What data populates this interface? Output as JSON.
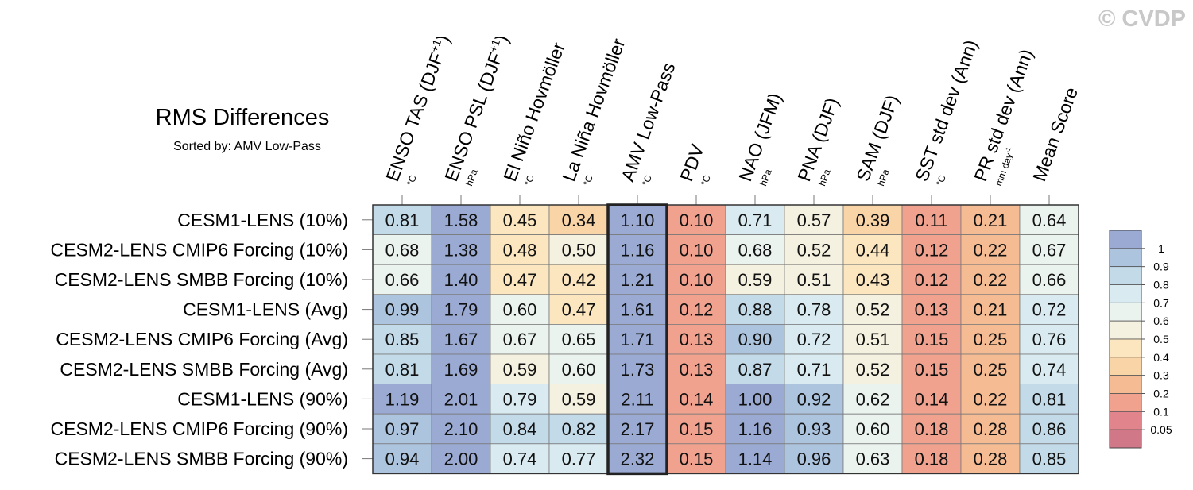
{
  "watermark": "© CVDP",
  "chart_data": {
    "type": "heatmap",
    "title": "RMS Differences",
    "subtitle": "Sorted by: AMV Low-Pass",
    "columns": [
      {
        "label": "ENSO TAS (DJF",
        "sup": "+1",
        "close": ")",
        "unit": "°C"
      },
      {
        "label": "ENSO PSL (DJF",
        "sup": "+1",
        "close": ")",
        "unit": "hPa"
      },
      {
        "label": "El Niño Hovmöller",
        "unit": "°C"
      },
      {
        "label": "La Niña Hovmöller",
        "unit": "°C"
      },
      {
        "label": "AMV Low-Pass",
        "unit": "°C"
      },
      {
        "label": "PDV",
        "unit": "°C"
      },
      {
        "label": "NAO (JFM)",
        "unit": "hPa"
      },
      {
        "label": "PNA (DJF)",
        "unit": "hPa"
      },
      {
        "label": "SAM (DJF)",
        "unit": "hPa"
      },
      {
        "label": "SST std dev (Ann)",
        "unit": "°C"
      },
      {
        "label": "PR std dev (Ann)",
        "unit": "mm day",
        "unit_sup": "-1"
      },
      {
        "label": "Mean Score",
        "unit": ""
      }
    ],
    "rows": [
      "CESM1-LENS (10%)",
      "CESM2-LENS CMIP6 Forcing (10%)",
      "CESM2-LENS SMBB Forcing (10%)",
      "CESM1-LENS (Avg)",
      "CESM2-LENS CMIP6 Forcing (Avg)",
      "CESM2-LENS SMBB Forcing (Avg)",
      "CESM1-LENS (90%)",
      "CESM2-LENS CMIP6 Forcing (90%)",
      "CESM2-LENS SMBB Forcing (90%)"
    ],
    "values": [
      [
        "0.81",
        "1.58",
        "0.45",
        "0.34",
        "1.10",
        "0.10",
        "0.71",
        "0.57",
        "0.39",
        "0.11",
        "0.21",
        "0.64"
      ],
      [
        "0.68",
        "1.38",
        "0.48",
        "0.50",
        "1.16",
        "0.10",
        "0.68",
        "0.52",
        "0.44",
        "0.12",
        "0.22",
        "0.67"
      ],
      [
        "0.66",
        "1.40",
        "0.47",
        "0.42",
        "1.21",
        "0.10",
        "0.59",
        "0.51",
        "0.43",
        "0.12",
        "0.22",
        "0.66"
      ],
      [
        "0.99",
        "1.79",
        "0.60",
        "0.47",
        "1.61",
        "0.12",
        "0.88",
        "0.78",
        "0.52",
        "0.13",
        "0.21",
        "0.72"
      ],
      [
        "0.85",
        "1.67",
        "0.67",
        "0.65",
        "1.71",
        "0.13",
        "0.90",
        "0.72",
        "0.51",
        "0.15",
        "0.25",
        "0.76"
      ],
      [
        "0.81",
        "1.69",
        "0.59",
        "0.60",
        "1.73",
        "0.13",
        "0.87",
        "0.71",
        "0.52",
        "0.15",
        "0.25",
        "0.74"
      ],
      [
        "1.19",
        "2.01",
        "0.79",
        "0.59",
        "2.11",
        "0.14",
        "1.00",
        "0.92",
        "0.62",
        "0.14",
        "0.22",
        "0.81"
      ],
      [
        "0.97",
        "2.10",
        "0.84",
        "0.82",
        "2.17",
        "0.15",
        "1.16",
        "0.93",
        "0.60",
        "0.18",
        "0.28",
        "0.86"
      ],
      [
        "0.94",
        "2.00",
        "0.74",
        "0.77",
        "2.32",
        "0.15",
        "1.14",
        "0.96",
        "0.63",
        "0.18",
        "0.28",
        "0.85"
      ]
    ],
    "highlight_column": "AMV Low-Pass",
    "colorbar": {
      "labels": [
        "1",
        "0.9",
        "0.8",
        "0.7",
        "0.6",
        "0.5",
        "0.4",
        "0.3",
        "0.2",
        "0.1",
        "0.05"
      ],
      "colors": [
        "#9aaad3",
        "#adc4df",
        "#c3dae9",
        "#d9ebf1",
        "#ebf3ef",
        "#f5f1e0",
        "#fbe6bf",
        "#f9d4a6",
        "#f5bc94",
        "#f0a28f",
        "#e2848c",
        "#d07888"
      ]
    }
  }
}
